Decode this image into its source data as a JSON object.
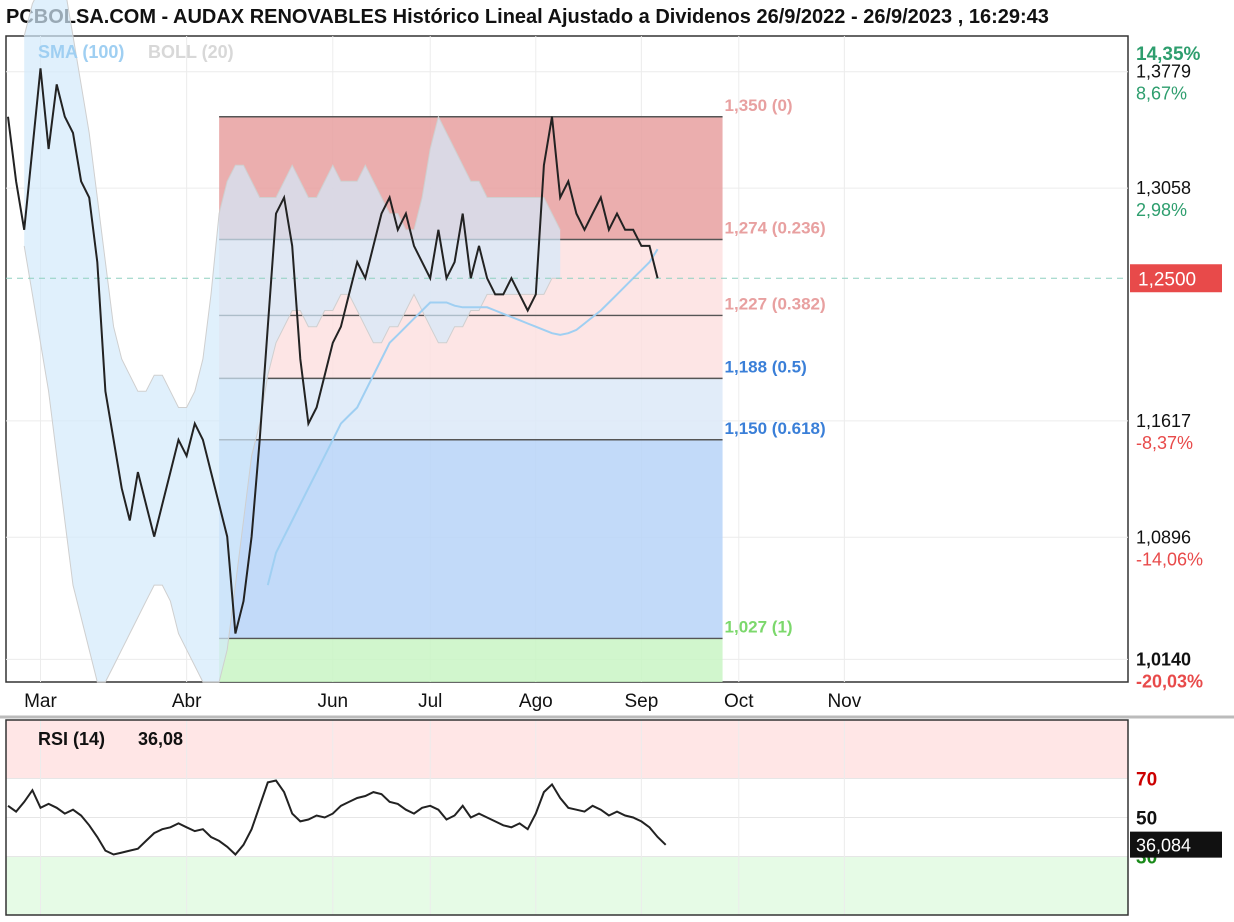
{
  "title": "PCBOLSA.COM - AUDAX RENOVABLES Histórico Lineal Ajustado a Dividenos 26/9/2022 - 26/9/2023 , 16:29:43",
  "indicators": {
    "sma": "SMA (100)",
    "boll": "BOLL (20)"
  },
  "colors": {
    "price_line": "#222222",
    "sma": "#9fcff2",
    "boll_band": "#d3e9fb",
    "fib_red": "#e8a0a0",
    "fib_pink": "#fde0e0",
    "fib_blue": "#b7d3f8",
    "fib_green": "#c9f4c4",
    "up": "#2e9e6e",
    "down": "#e84a4a",
    "rsi_over": "#ffe6e6",
    "rsi_under": "#e6fbe6"
  },
  "chart_data": {
    "type": "line",
    "price_axis": {
      "range": [
        1.0,
        1.4
      ],
      "ticks": [
        {
          "value": 1.3779,
          "label": "1,3779",
          "pct": "8,67%",
          "dir": "up"
        },
        {
          "value": 1.3058,
          "label": "1,3058",
          "pct": "2,98%",
          "dir": "up"
        },
        {
          "value": 1.1617,
          "label": "1,1617",
          "pct": "-8,37%",
          "dir": "down"
        },
        {
          "value": 1.0896,
          "label": "1,0896",
          "pct": "-14,06%",
          "dir": "down"
        },
        {
          "value": 1.014,
          "label": "1,0140",
          "pct": "-20,03%",
          "dir": "down",
          "bold": true
        }
      ],
      "top_pct": "14,35%",
      "current": {
        "value": 1.25,
        "label": "1,2500"
      }
    },
    "months": [
      {
        "label": "Mar",
        "index": 4
      },
      {
        "label": "Abr",
        "index": 22
      },
      {
        "label": "Jun",
        "index": 40
      },
      {
        "label": "Jul",
        "index": 52
      },
      {
        "label": "Ago",
        "index": 65
      },
      {
        "label": "Sep",
        "index": 78
      },
      {
        "label": "Oct",
        "index": 90
      },
      {
        "label": "Nov",
        "index": 103
      }
    ],
    "fibonacci": {
      "start_index": 26,
      "end_index": 88,
      "levels": [
        {
          "value": 1.35,
          "label": "1,350 (0)",
          "color": "#e8a0a0"
        },
        {
          "value": 1.274,
          "label": "1,274 (0.236)",
          "color": "#e8a0a0"
        },
        {
          "value": 1.227,
          "label": "1,227 (0.382)",
          "color": "#e8a0a0"
        },
        {
          "value": 1.188,
          "label": "1,188 (0.5)",
          "color": "#3a7fd8"
        },
        {
          "value": 1.15,
          "label": "1,150 (0.618)",
          "color": "#3a7fd8"
        },
        {
          "value": 1.027,
          "label": "1,027 (1)",
          "color": "#7cd86c"
        }
      ]
    },
    "close": [
      1.35,
      1.31,
      1.28,
      1.33,
      1.38,
      1.33,
      1.37,
      1.35,
      1.34,
      1.31,
      1.3,
      1.26,
      1.18,
      1.15,
      1.12,
      1.1,
      1.13,
      1.11,
      1.09,
      1.11,
      1.13,
      1.15,
      1.14,
      1.16,
      1.15,
      1.13,
      1.11,
      1.09,
      1.03,
      1.05,
      1.09,
      1.15,
      1.22,
      1.29,
      1.3,
      1.27,
      1.2,
      1.16,
      1.17,
      1.19,
      1.21,
      1.22,
      1.24,
      1.26,
      1.25,
      1.27,
      1.29,
      1.3,
      1.28,
      1.29,
      1.27,
      1.26,
      1.25,
      1.28,
      1.25,
      1.26,
      1.29,
      1.25,
      1.27,
      1.25,
      1.24,
      1.24,
      1.25,
      1.24,
      1.23,
      1.24,
      1.32,
      1.35,
      1.3,
      1.31,
      1.29,
      1.28,
      1.29,
      1.3,
      1.28,
      1.29,
      1.28,
      1.28,
      1.27,
      1.27,
      1.25
    ],
    "close_start_index": 0,
    "sma100": [
      null,
      null,
      null,
      null,
      null,
      null,
      null,
      null,
      null,
      null,
      null,
      null,
      null,
      null,
      1.06,
      1.08,
      1.09,
      1.1,
      1.11,
      1.12,
      1.13,
      1.14,
      1.15,
      1.16,
      1.165,
      1.17,
      1.18,
      1.19,
      1.2,
      1.21,
      1.215,
      1.22,
      1.225,
      1.23,
      1.235,
      1.235,
      1.235,
      1.233,
      1.232,
      1.232,
      1.232,
      1.232,
      1.23,
      1.228,
      1.226,
      1.224,
      1.222,
      1.22,
      1.218,
      1.216,
      1.215,
      1.216,
      1.218,
      1.222,
      1.226,
      1.23,
      1.235,
      1.24,
      1.245,
      1.25,
      1.255,
      1.26,
      1.268
    ],
    "sma_start_index": 18,
    "boll_upper": [
      1.4,
      1.42,
      1.43,
      1.44,
      1.44,
      1.43,
      1.4,
      1.37,
      1.34,
      1.3,
      1.26,
      1.22,
      1.2,
      1.19,
      1.18,
      1.18,
      1.19,
      1.19,
      1.18,
      1.17,
      1.17,
      1.18,
      1.2,
      1.24,
      1.29,
      1.31,
      1.32,
      1.32,
      1.31,
      1.3,
      1.3,
      1.3,
      1.31,
      1.32,
      1.31,
      1.3,
      1.3,
      1.31,
      1.32,
      1.31,
      1.31,
      1.31,
      1.32,
      1.31,
      1.3,
      1.29,
      1.29,
      1.28,
      1.28,
      1.3,
      1.33,
      1.35,
      1.34,
      1.33,
      1.32,
      1.31,
      1.31,
      1.3,
      1.3,
      1.3,
      1.3,
      1.3,
      1.3,
      1.3,
      1.3,
      1.29,
      1.28
    ],
    "boll_lower": [
      1.27,
      1.24,
      1.21,
      1.18,
      1.14,
      1.1,
      1.06,
      1.04,
      1.02,
      1.0,
      1.0,
      1.01,
      1.02,
      1.03,
      1.04,
      1.05,
      1.06,
      1.06,
      1.05,
      1.03,
      1.02,
      1.01,
      1.0,
      1.0,
      1.0,
      1.02,
      1.06,
      1.1,
      1.14,
      1.16,
      1.19,
      1.21,
      1.22,
      1.23,
      1.23,
      1.22,
      1.22,
      1.23,
      1.23,
      1.24,
      1.24,
      1.23,
      1.22,
      1.21,
      1.21,
      1.22,
      1.22,
      1.23,
      1.24,
      1.23,
      1.22,
      1.21,
      1.21,
      1.22,
      1.22,
      1.23,
      1.23,
      1.24,
      1.24,
      1.24,
      1.24,
      1.24,
      1.24,
      1.24,
      1.24,
      1.25,
      1.25
    ],
    "boll_start_index": 2,
    "rsi": {
      "label": "RSI (14)",
      "value_label": "36,08",
      "current": {
        "value": 36.084,
        "label": "36,084"
      },
      "levels": [
        {
          "value": 70,
          "label": "70",
          "color": "#cc0000"
        },
        {
          "value": 50,
          "label": "50",
          "color": "#111111"
        },
        {
          "value": 30,
          "label": "30",
          "color": "#1a8a1a"
        }
      ],
      "values": [
        56,
        53,
        58,
        64,
        55,
        57,
        55,
        52,
        54,
        51,
        46,
        40,
        33,
        31,
        32,
        33,
        34,
        38,
        42,
        44,
        45,
        47,
        45,
        43,
        44,
        40,
        38,
        35,
        31,
        36,
        44,
        56,
        68,
        69,
        63,
        52,
        48,
        49,
        51,
        50,
        52,
        56,
        58,
        60,
        61,
        63,
        62,
        58,
        57,
        54,
        52,
        55,
        56,
        54,
        49,
        51,
        56,
        50,
        52,
        50,
        48,
        46,
        45,
        47,
        44,
        52,
        63,
        67,
        60,
        55,
        54,
        53,
        56,
        54,
        51,
        53,
        51,
        50,
        48,
        45,
        40,
        36
      ]
    }
  }
}
